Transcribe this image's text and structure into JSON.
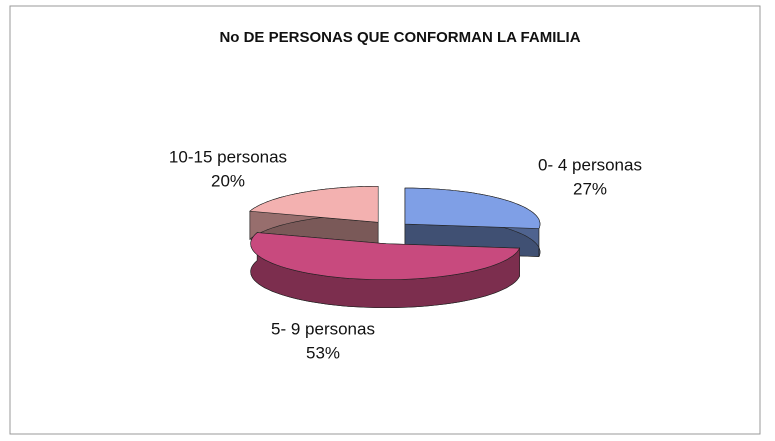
{
  "chart_data": {
    "type": "pie",
    "title": "No DE PERSONAS QUE CONFORMAN LA FAMILIA",
    "categories": [
      "0- 4 personas",
      "5- 9 personas",
      "10-15 personas"
    ],
    "values": [
      27,
      53,
      20
    ],
    "value_labels": [
      "27%",
      "53%",
      "20%"
    ],
    "colors": [
      "#7f9fe6",
      "#c84a7e",
      "#f3b1b0"
    ]
  }
}
